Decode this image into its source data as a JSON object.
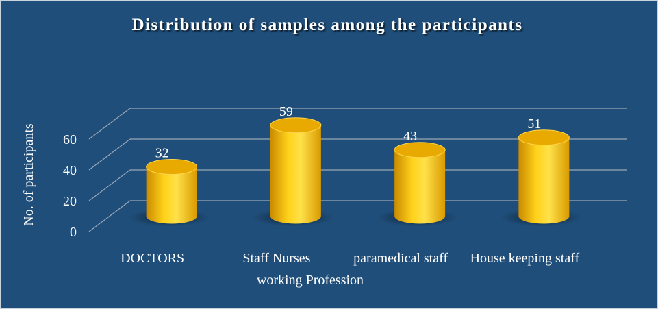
{
  "chart_data": {
    "type": "cylinder",
    "title": "Distribution of samples among the participants",
    "x_label": "working Profession",
    "y_label": "No. of participants",
    "categories": [
      "DOCTORS",
      "Staff Nurses",
      "paramedical staff",
      "House keeping staff"
    ],
    "values": [
      32,
      59,
      43,
      51
    ],
    "color": "#f5c000",
    "ylim": [
      0,
      60
    ],
    "yticks": [
      0,
      20,
      40,
      60
    ],
    "grid": true
  }
}
